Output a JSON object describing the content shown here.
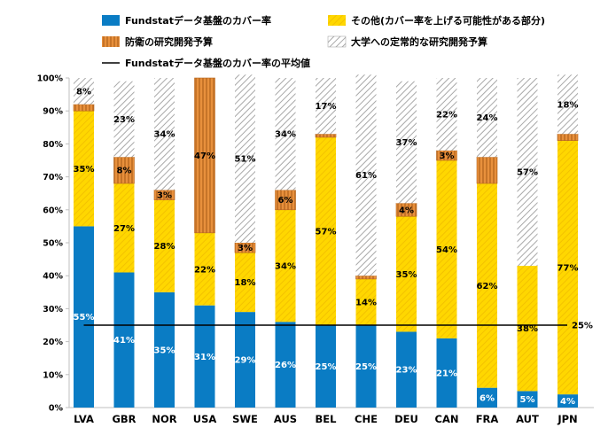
{
  "chart_data": {
    "type": "bar",
    "stacked": true,
    "categories": [
      "LVA",
      "GBR",
      "NOR",
      "USA",
      "SWE",
      "AUS",
      "BEL",
      "CHE",
      "DEU",
      "CAN",
      "FRA",
      "AUT",
      "JPN"
    ],
    "series": [
      {
        "key": "fundstat",
        "name": "Fundstatデータ基盤のカバー率",
        "color": "#0a7cc4",
        "pattern": "solid",
        "values": [
          55,
          41,
          35,
          31,
          29,
          26,
          25,
          25,
          23,
          21,
          6,
          5,
          4
        ],
        "labels": [
          "55%",
          "41%",
          "35%",
          "31%",
          "29%",
          "26%",
          "25%",
          "25%",
          "23%",
          "21%",
          "6%",
          "5%",
          "4%"
        ],
        "label_color": "#ffffff"
      },
      {
        "key": "other",
        "name": "その他(カバー率を上げる可能性がある部分)",
        "color": "#ffd700",
        "pattern": "diag-yellow",
        "values": [
          35,
          27,
          28,
          22,
          18,
          34,
          57,
          14,
          35,
          54,
          62,
          38,
          77
        ],
        "labels": [
          "35%",
          "27%",
          "28%",
          "22%",
          "18%",
          "34%",
          "57%",
          "14%",
          "35%",
          "54%",
          "62%",
          "38%",
          "77%"
        ],
        "label_color": "#000000"
      },
      {
        "key": "defense",
        "name": "防衛の研究開発予算",
        "color": "#e8903c",
        "pattern": "vert-orange",
        "values": [
          2,
          8,
          3,
          47,
          3,
          6,
          1,
          1,
          4,
          3,
          8,
          0,
          2
        ],
        "labels": [
          "",
          "8%",
          "3%",
          "47%",
          "3%",
          "6%",
          "",
          "",
          "4%",
          "3%",
          "",
          "",
          ""
        ],
        "label_color": "#000000"
      },
      {
        "key": "univ",
        "name": "大学への定常的な研究開発予算",
        "color": "#c0c0c0",
        "pattern": "diag-gray",
        "values": [
          8,
          23,
          34,
          0,
          51,
          34,
          17,
          61,
          37,
          22,
          24,
          57,
          18
        ],
        "labels": [
          "8%",
          "23%",
          "34%",
          "",
          "51%",
          "34%",
          "17%",
          "61%",
          "37%",
          "22%",
          "24%",
          "57%",
          "18%"
        ],
        "label_color": "#000000"
      }
    ],
    "reference_line": {
      "name": "Fundstatデータ基盤のカバー率の平均値",
      "value": 25,
      "label": "25%",
      "color": "#000000"
    },
    "y_axis": {
      "min": 0,
      "max": 100,
      "ticks": [
        0,
        10,
        20,
        30,
        40,
        50,
        60,
        70,
        80,
        90,
        100
      ],
      "tick_labels": [
        "0%",
        "10%",
        "20%",
        "30%",
        "40%",
        "50%",
        "60%",
        "70%",
        "80%",
        "90%",
        "100%"
      ]
    },
    "grid": false,
    "legend_position": "top",
    "title": "",
    "xlabel": "",
    "ylabel": ""
  }
}
